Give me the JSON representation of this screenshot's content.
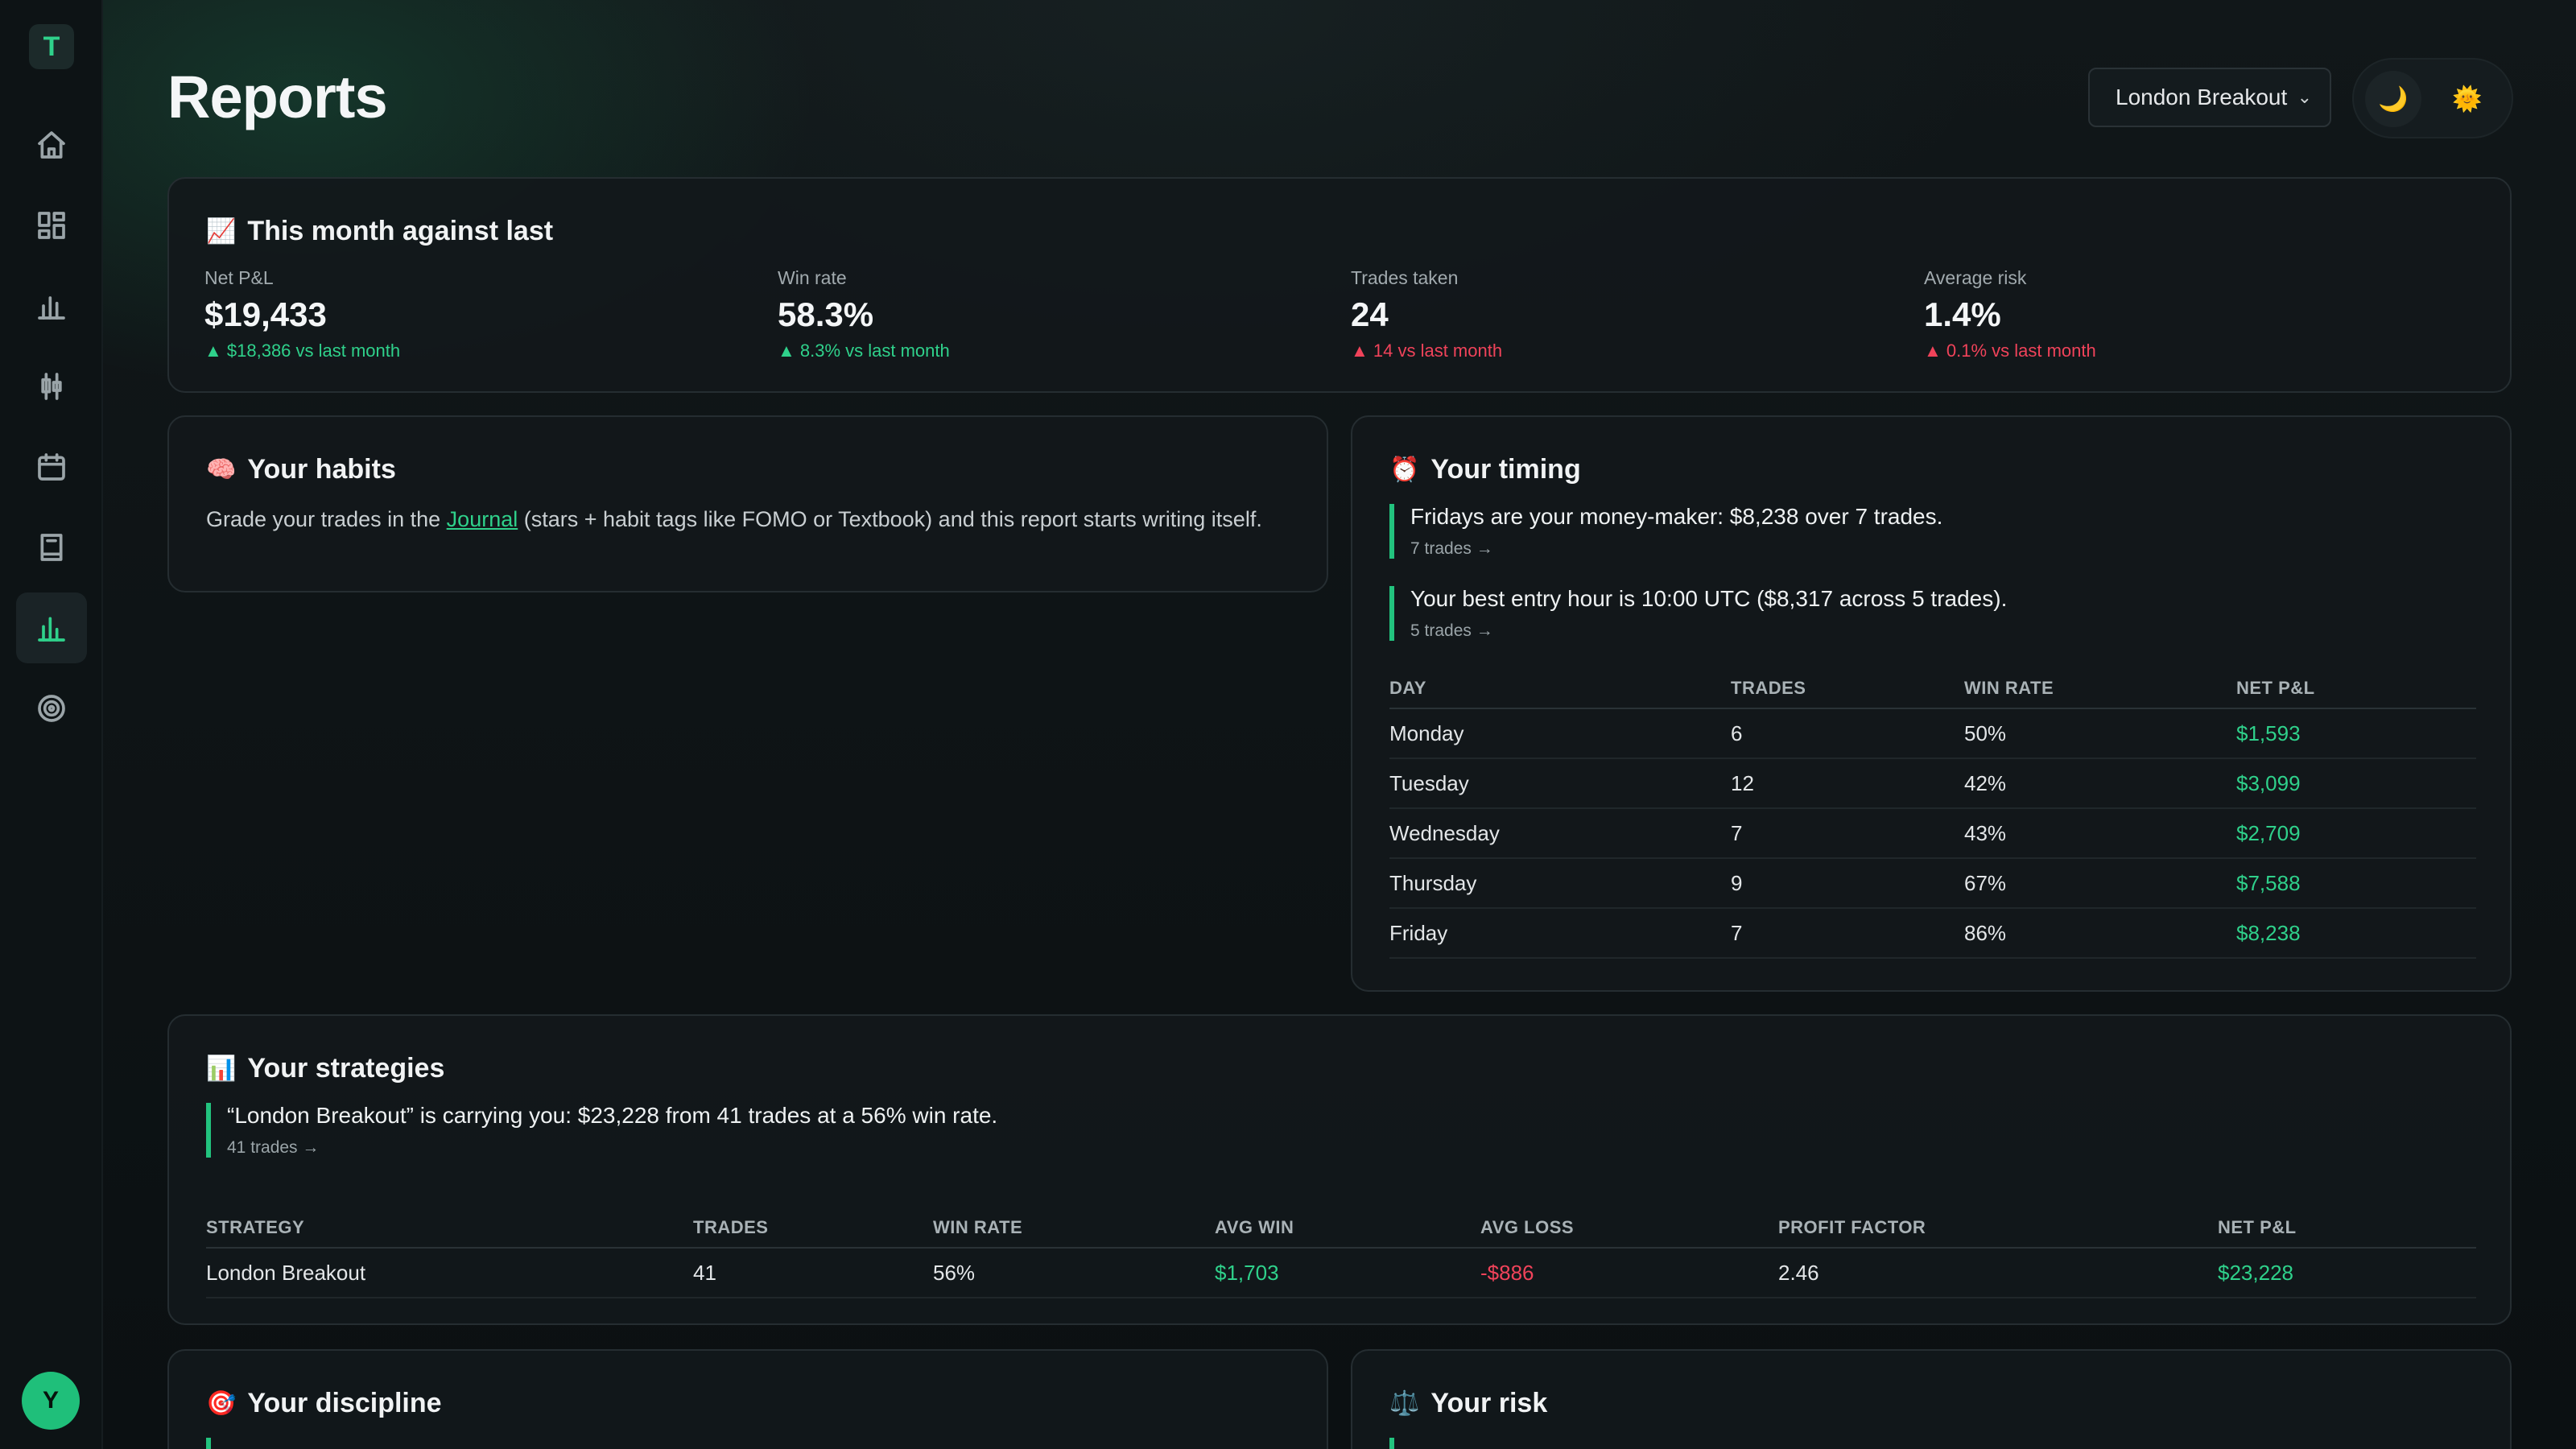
{
  "sidebar": {
    "logo_letter": "T",
    "items": [
      {
        "name": "home",
        "icon": "home-icon"
      },
      {
        "name": "dashboard",
        "icon": "dashboard-grid-icon"
      },
      {
        "name": "analytics",
        "icon": "bar-chart-icon"
      },
      {
        "name": "trades",
        "icon": "candlestick-icon"
      },
      {
        "name": "calendar",
        "icon": "calendar-icon"
      },
      {
        "name": "journal",
        "icon": "notebook-icon"
      },
      {
        "name": "reports",
        "icon": "reports-chart-icon",
        "active": true
      },
      {
        "name": "goals",
        "icon": "target-icon"
      }
    ],
    "avatar_initial": "Y"
  },
  "header": {
    "title": "Reports",
    "strategy_select": {
      "selected": "London Breakout"
    },
    "theme": {
      "dark_icon": "🌙",
      "light_icon": "🌞"
    }
  },
  "month_card": {
    "emoji": "📈",
    "title": "This month against last",
    "metrics": [
      {
        "label": "Net P&L",
        "value": "$19,433",
        "change": "▲ $18,386 vs last month",
        "tone": "good"
      },
      {
        "label": "Win rate",
        "value": "58.3%",
        "change": "▲ 8.3% vs last month",
        "tone": "good"
      },
      {
        "label": "Trades taken",
        "value": "24",
        "change": "▲ 14 vs last month",
        "tone": "bad"
      },
      {
        "label": "Average risk",
        "value": "1.4%",
        "change": "▲ 0.1% vs last month",
        "tone": "bad"
      }
    ]
  },
  "habits_card": {
    "emoji": "🧠",
    "title": "Your habits",
    "text_before": "Grade your trades in the ",
    "link": "Journal",
    "text_after": " (stars + habit tags like FOMO or Textbook) and this report starts writing itself."
  },
  "timing_card": {
    "emoji": "⏰",
    "title": "Your timing",
    "insights": [
      {
        "text": "Fridays are your money-maker: $8,238 over 7 trades.",
        "link": "7 trades →"
      },
      {
        "text": "Your best entry hour is 10:00 UTC ($8,317 across 5 trades).",
        "link": "5 trades →"
      }
    ],
    "columns": [
      "DAY",
      "TRADES",
      "WIN RATE",
      "NET P&L"
    ],
    "rows": [
      {
        "day": "Monday",
        "trades": "6",
        "win_rate": "50%",
        "net_pnl": "$1,593"
      },
      {
        "day": "Tuesday",
        "trades": "12",
        "win_rate": "42%",
        "net_pnl": "$3,099"
      },
      {
        "day": "Wednesday",
        "trades": "7",
        "win_rate": "43%",
        "net_pnl": "$2,709"
      },
      {
        "day": "Thursday",
        "trades": "9",
        "win_rate": "67%",
        "net_pnl": "$7,588"
      },
      {
        "day": "Friday",
        "trades": "7",
        "win_rate": "86%",
        "net_pnl": "$8,238"
      }
    ]
  },
  "strategies_card": {
    "emoji": "📊",
    "title": "Your strategies",
    "insight": {
      "text": "“London Breakout” is carrying you: $23,228 from 41 trades at a 56% win rate.",
      "link": "41 trades →"
    },
    "columns": [
      "STRATEGY",
      "TRADES",
      "WIN RATE",
      "AVG WIN",
      "AVG LOSS",
      "PROFIT FACTOR",
      "NET P&L"
    ],
    "rows": [
      {
        "strategy": "London Breakout",
        "trades": "41",
        "win_rate": "56%",
        "avg_win": "$1,703",
        "avg_loss": "-$886",
        "profit_factor": "2.46",
        "net_pnl": "$23,228"
      }
    ]
  },
  "discipline_card": {
    "emoji": "🎯",
    "title": "Your discipline"
  },
  "risk_card": {
    "emoji": "⚖️",
    "title": "Your risk"
  },
  "colors": {
    "accent": "#2fd18b",
    "negative": "#f0435a",
    "background": "#0c1114"
  }
}
